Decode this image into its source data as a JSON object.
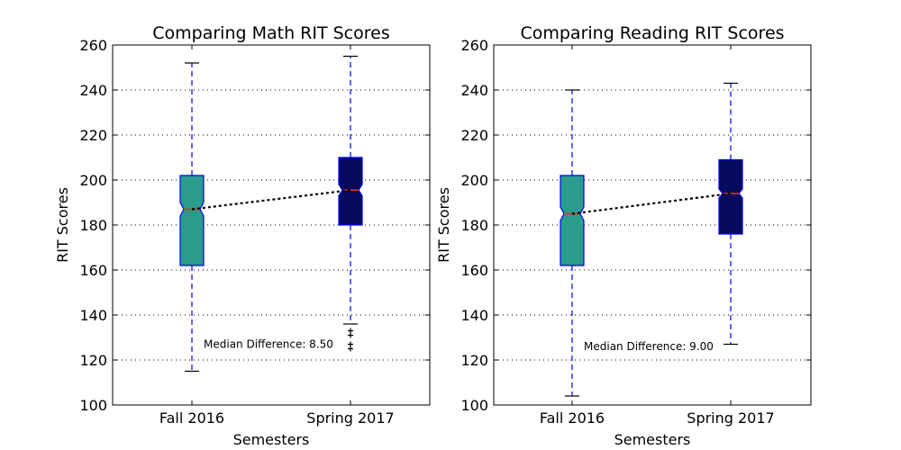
{
  "chart_data": [
    {
      "type": "boxplot",
      "title": "Comparing Math RIT Scores",
      "xlabel": "Semesters",
      "ylabel": "RIT Scores",
      "ylim": [
        100,
        260
      ],
      "yticks": [
        100,
        120,
        140,
        160,
        180,
        200,
        220,
        240,
        260
      ],
      "categories": [
        "Fall 2016",
        "Spring 2017"
      ],
      "grid": true,
      "boxes": [
        {
          "name": "Fall 2016",
          "color": "#2a9d8a",
          "whisker_low": 115,
          "q1": 162,
          "median": 187,
          "q3": 202,
          "whisker_high": 252,
          "notch_low": 184,
          "notch_high": 190,
          "outliers": []
        },
        {
          "name": "Spring 2017",
          "color": "#050a5c",
          "whisker_low": 136,
          "q1": 180,
          "median": 195.5,
          "q3": 210,
          "whisker_high": 255,
          "notch_low": 193,
          "notch_high": 198,
          "outliers": [
            133,
            131,
            127,
            125
          ]
        }
      ],
      "median_line": [
        187,
        195.5
      ],
      "annotation": "Median Difference: 8.50",
      "annotation_pos": [
        1.14,
        127
      ]
    },
    {
      "type": "boxplot",
      "title": "Comparing Reading RIT Scores",
      "xlabel": "Semesters",
      "ylabel": "RIT Scores",
      "ylim": [
        100,
        260
      ],
      "yticks": [
        100,
        120,
        140,
        160,
        180,
        200,
        220,
        240,
        260
      ],
      "categories": [
        "Fall 2016",
        "Spring 2017"
      ],
      "grid": true,
      "boxes": [
        {
          "name": "Fall 2016",
          "color": "#2a9d8a",
          "whisker_low": 104,
          "q1": 162,
          "median": 185,
          "q3": 202,
          "whisker_high": 240,
          "notch_low": 182,
          "notch_high": 188,
          "outliers": []
        },
        {
          "name": "Spring 2017",
          "color": "#050a5c",
          "whisker_low": 127,
          "q1": 176,
          "median": 194,
          "q3": 209,
          "whisker_high": 243,
          "notch_low": 192,
          "notch_high": 196,
          "outliers": []
        }
      ],
      "median_line": [
        185,
        194
      ],
      "annotation": "Median Difference: 9.00",
      "annotation_pos": [
        1.14,
        126
      ]
    }
  ]
}
